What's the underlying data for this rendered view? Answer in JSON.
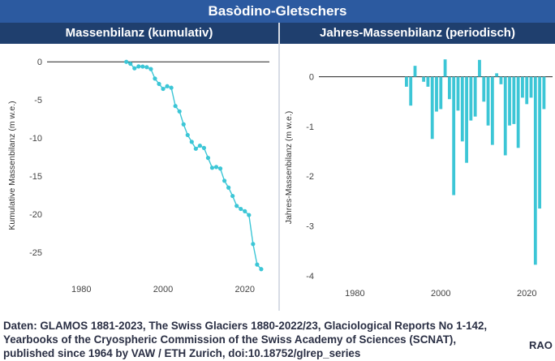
{
  "header": {
    "title": "Basòdino-Gletschers"
  },
  "panels": {
    "left_title": "Massenbilanz (kumulativ)",
    "right_title": "Jahres-Massenbilanz (periodisch)"
  },
  "footer": {
    "line1": "Daten: GLAMOS 1881-2023, The Swiss Glaciers 1880-2022/23, Glaciological Reports No 1-142,",
    "line2": "Yearbooks of the Cryospheric Commission of the Swiss Academy of Sciences (SCNAT),",
    "line3": "published since 1964 by VAW / ETH Zurich, doi:10.18752/glrep_series",
    "credit": "RAO"
  },
  "colors": {
    "series": "#3cc6d6",
    "title_bar": "#2c5aa0",
    "panel_header": "#1f3f6e"
  },
  "chart_data": [
    {
      "type": "line",
      "title": "Massenbilanz (kumulativ)",
      "xlabel": "",
      "ylabel": "Kumulative Massenbilanz (m w.e.)",
      "xlim": [
        1972,
        2026
      ],
      "ylim": [
        -28.5,
        1.3
      ],
      "xticks": [
        1980,
        2000,
        2020
      ],
      "yticks": [
        0,
        -5,
        -10,
        -15,
        -20,
        -25
      ],
      "grid": false,
      "x": [
        1991,
        1992,
        1993,
        1994,
        1995,
        1996,
        1997,
        1998,
        1999,
        2000,
        2001,
        2002,
        2003,
        2004,
        2005,
        2006,
        2007,
        2008,
        2009,
        2010,
        2011,
        2012,
        2013,
        2014,
        2015,
        2016,
        2017,
        2018,
        2019,
        2020,
        2021,
        2022,
        2023,
        2024
      ],
      "y": [
        0,
        -0.25,
        -0.85,
        -0.6,
        -0.62,
        -0.7,
        -0.95,
        -2.2,
        -2.9,
        -3.55,
        -3.2,
        -3.4,
        -5.8,
        -6.5,
        -8.2,
        -9.6,
        -10.5,
        -11.4,
        -11.0,
        -11.3,
        -12.6,
        -13.9,
        -13.8,
        -14.0,
        -15.6,
        -16.5,
        -17.6,
        -18.9,
        -19.3,
        -19.6,
        -20.1,
        -23.9,
        -26.6,
        -27.2
      ]
    },
    {
      "type": "bar",
      "title": "Jahres-Massenbilanz (periodisch)",
      "xlabel": "",
      "ylabel": "Jahres-Massenbilanz (m w.e.)",
      "xlim": [
        1972,
        2026
      ],
      "ylim": [
        -4.15,
        0.5
      ],
      "xticks": [
        1980,
        2000,
        2020
      ],
      "yticks": [
        0,
        -1,
        -2,
        -3,
        -4
      ],
      "grid": false,
      "x": [
        1992,
        1993,
        1994,
        1995,
        1996,
        1997,
        1998,
        1999,
        2000,
        2001,
        2002,
        2003,
        2004,
        2005,
        2006,
        2007,
        2008,
        2009,
        2010,
        2011,
        2012,
        2013,
        2014,
        2015,
        2016,
        2017,
        2018,
        2019,
        2020,
        2021,
        2022,
        2023,
        2024
      ],
      "values": [
        -0.2,
        -0.58,
        0.22,
        0.0,
        -0.1,
        -0.2,
        -1.25,
        -0.7,
        -0.65,
        0.35,
        -0.45,
        -2.38,
        -0.68,
        -1.3,
        -1.73,
        -0.88,
        -0.8,
        0.34,
        -0.5,
        -0.98,
        -1.37,
        0.07,
        -0.15,
        -1.58,
        -0.98,
        -0.95,
        -1.43,
        -0.42,
        -0.55,
        -0.42,
        -3.78,
        -2.65,
        -0.65
      ]
    }
  ]
}
